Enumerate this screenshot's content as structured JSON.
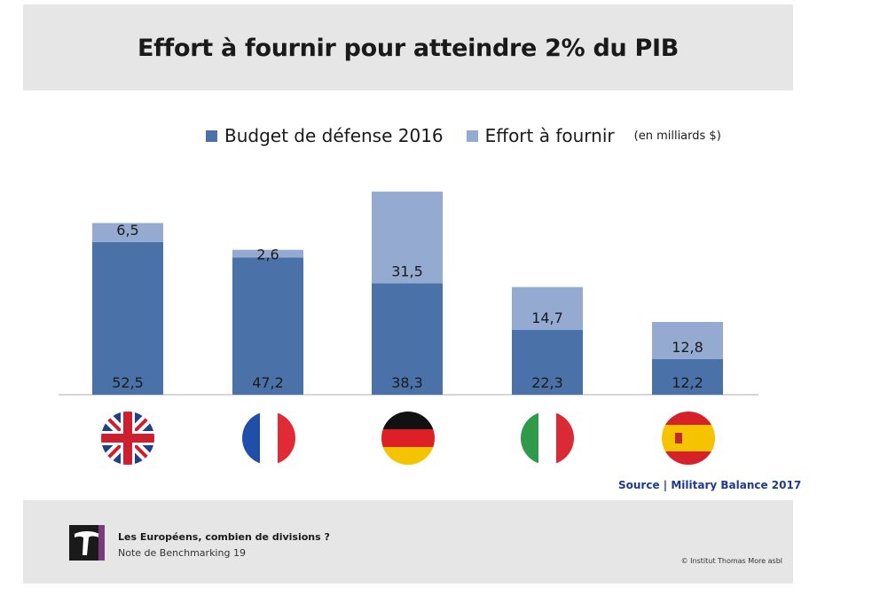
{
  "chart_data": {
    "type": "bar",
    "stacked": true,
    "title": "Effort à fournir pour atteindre 2% du PIB",
    "unit": "(en milliards $)",
    "categories": [
      "",
      "",
      "",
      "",
      ""
    ],
    "countries": [
      "Royaume-Uni",
      "France",
      "Allemagne",
      "Italie",
      "Espagne"
    ],
    "series": [
      {
        "name": "Budget de défense 2016",
        "values": [
          52.5,
          47.2,
          38.3,
          22.3,
          12.2
        ],
        "labels": [
          "52,5",
          "47,2",
          "38,3",
          "22,3",
          "12,2"
        ],
        "color": "#4a72a8"
      },
      {
        "name": "Effort à fournir",
        "values": [
          6.5,
          2.6,
          31.5,
          14.7,
          12.8
        ],
        "labels": [
          "6,5",
          "2,6",
          "31,5",
          "14,7",
          "12,8"
        ],
        "color": "#94aad1"
      }
    ],
    "ylim": [
      0,
      75
    ],
    "grid": false,
    "legend": "top"
  },
  "source": "Source | Military Balance 2017",
  "footer": {
    "title": "Les Européens, combien de divisions ?",
    "subtitle": "Note de Benchmarking 19",
    "copyright": "© Institut Thomas More asbl"
  },
  "colors": {
    "budget": "#4a72a8",
    "effort": "#94aad1",
    "source_text": "#1f3a8c",
    "panel": "#e6e6e6"
  },
  "icons": [
    "uk-flag-icon",
    "france-flag-icon",
    "germany-flag-icon",
    "italy-flag-icon",
    "spain-flag-icon",
    "institut-thomas-more-logo"
  ]
}
